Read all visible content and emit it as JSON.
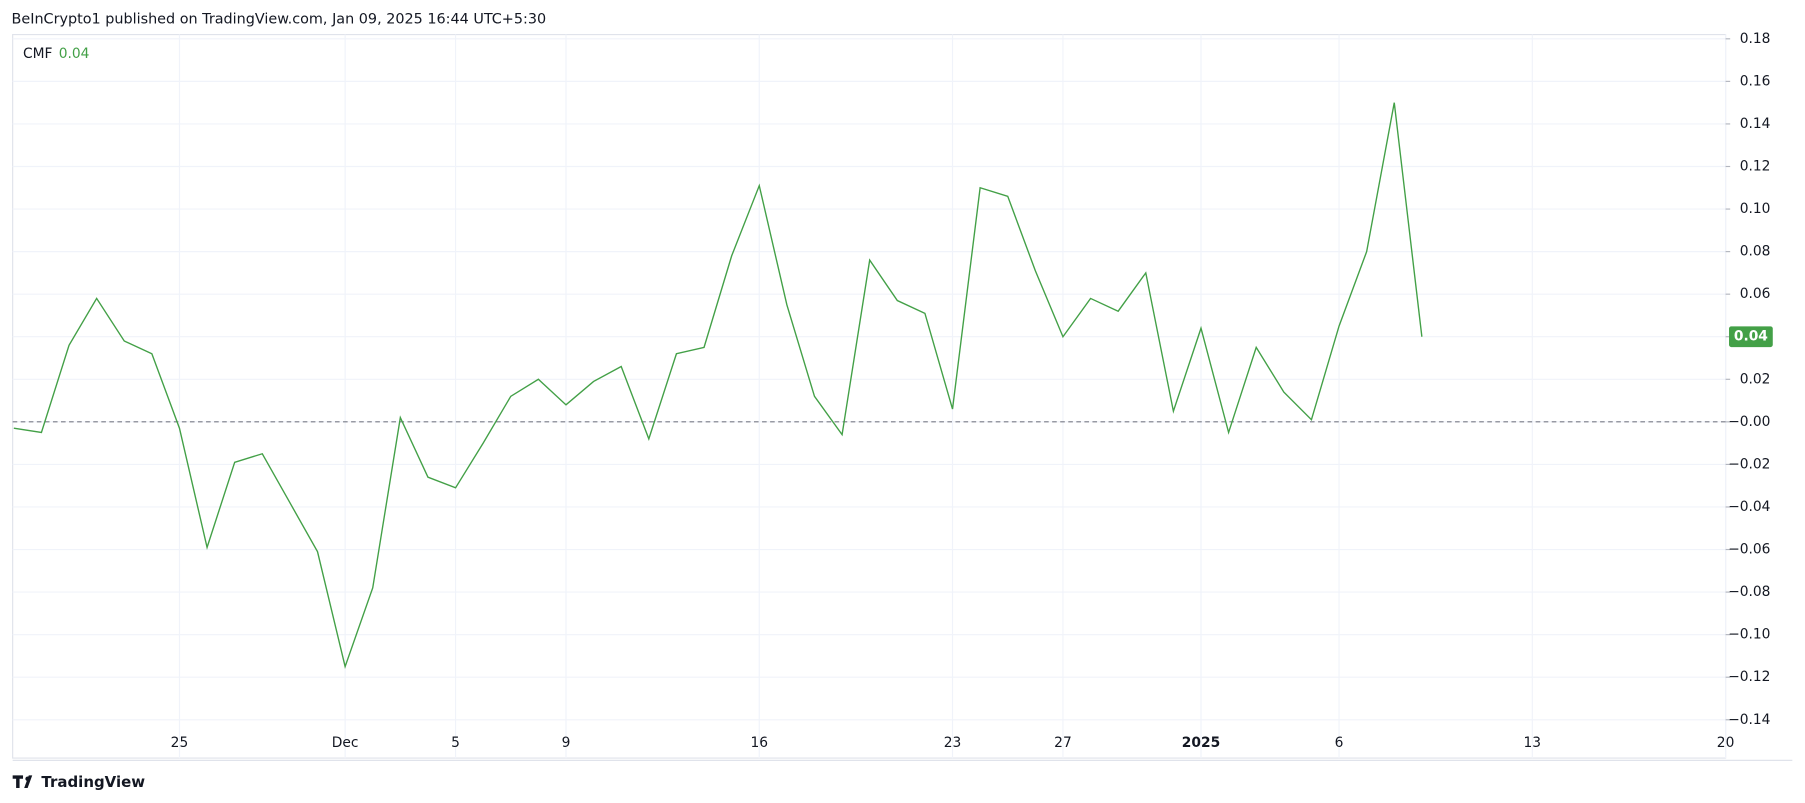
{
  "header": {
    "text": "BeInCrypto1 published on TradingView.com, Jan 09, 2025 16:44 UTC+5:30"
  },
  "footer": {
    "brand": "TradingView"
  },
  "chart_data": {
    "type": "line",
    "legend": {
      "name": "CMF",
      "value": 0.04
    },
    "x": [
      "2024-11-19",
      "2024-11-20",
      "2024-11-21",
      "2024-11-22",
      "2024-11-23",
      "2024-11-24",
      "2024-11-25",
      "2024-11-26",
      "2024-11-27",
      "2024-11-28",
      "2024-11-29",
      "2024-11-30",
      "2024-12-01",
      "2024-12-02",
      "2024-12-03",
      "2024-12-04",
      "2024-12-05",
      "2024-12-06",
      "2024-12-07",
      "2024-12-08",
      "2024-12-09",
      "2024-12-10",
      "2024-12-11",
      "2024-12-12",
      "2024-12-13",
      "2024-12-14",
      "2024-12-15",
      "2024-12-16",
      "2024-12-17",
      "2024-12-18",
      "2024-12-19",
      "2024-12-20",
      "2024-12-21",
      "2024-12-22",
      "2024-12-23",
      "2024-12-24",
      "2024-12-25",
      "2024-12-26",
      "2024-12-27",
      "2024-12-28",
      "2024-12-29",
      "2024-12-30",
      "2024-12-31",
      "2025-01-01",
      "2025-01-02",
      "2025-01-03",
      "2025-01-04",
      "2025-01-05",
      "2025-01-06",
      "2025-01-07",
      "2025-01-08",
      "2025-01-09"
    ],
    "series": [
      {
        "name": "CMF",
        "color": "#43a047",
        "values": [
          -0.003,
          -0.005,
          0.036,
          0.058,
          0.038,
          0.032,
          -0.003,
          -0.059,
          -0.019,
          -0.015,
          -0.038,
          -0.061,
          -0.115,
          -0.078,
          0.002,
          -0.026,
          -0.031,
          -0.01,
          0.012,
          0.02,
          0.008,
          0.019,
          0.026,
          -0.008,
          0.032,
          0.035,
          0.078,
          0.111,
          0.055,
          0.012,
          -0.006,
          0.076,
          0.057,
          0.051,
          0.006,
          0.11,
          0.106,
          0.071,
          0.04,
          0.058,
          0.052,
          0.07,
          0.005,
          0.044,
          -0.005,
          0.035,
          0.014,
          0.001,
          0.045,
          0.08,
          0.15,
          0.04
        ]
      }
    ],
    "last_value": 0.04,
    "baseline": 0,
    "xlim": [
      "2024-11-19",
      "2025-01-20"
    ],
    "xticks": [
      {
        "value": "2024-11-25",
        "label": "25"
      },
      {
        "value": "2024-12-01",
        "label": "Dec"
      },
      {
        "value": "2024-12-05",
        "label": "5"
      },
      {
        "value": "2024-12-09",
        "label": "9"
      },
      {
        "value": "2024-12-16",
        "label": "16"
      },
      {
        "value": "2024-12-23",
        "label": "23"
      },
      {
        "value": "2024-12-27",
        "label": "27"
      },
      {
        "value": "2025-01-01",
        "label": "2025"
      },
      {
        "value": "2025-01-06",
        "label": "6"
      },
      {
        "value": "2025-01-13",
        "label": "13"
      },
      {
        "value": "2025-01-20",
        "label": "20"
      }
    ],
    "ylim": [
      -0.158,
      0.182
    ],
    "yticks": [
      {
        "value": 0.18,
        "label": "0.18"
      },
      {
        "value": 0.16,
        "label": "0.16"
      },
      {
        "value": 0.14,
        "label": "0.14"
      },
      {
        "value": 0.12,
        "label": "0.12"
      },
      {
        "value": 0.1,
        "label": "0.10"
      },
      {
        "value": 0.08,
        "label": "0.08"
      },
      {
        "value": 0.06,
        "label": "0.06"
      },
      {
        "value": 0.04,
        "label": "0.04"
      },
      {
        "value": 0.02,
        "label": "0.02"
      },
      {
        "value": 0,
        "label": "−0.00"
      },
      {
        "value": -0.02,
        "label": "−0.02"
      },
      {
        "value": -0.04,
        "label": "−0.04"
      },
      {
        "value": -0.06,
        "label": "−0.06"
      },
      {
        "value": -0.08,
        "label": "−0.08"
      },
      {
        "value": -0.1,
        "label": "−0.10"
      },
      {
        "value": -0.12,
        "label": "−0.12"
      },
      {
        "value": -0.14,
        "label": "−0.14"
      }
    ],
    "grid": true
  }
}
